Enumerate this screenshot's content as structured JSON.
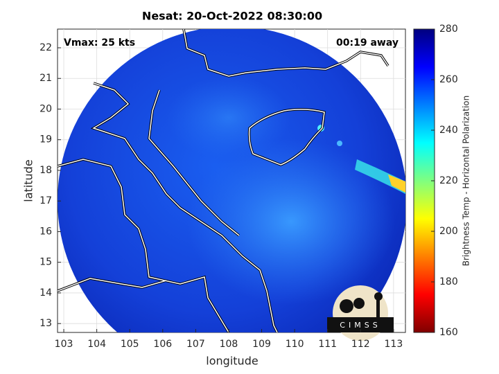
{
  "chart_data": {
    "type": "map",
    "title": "Nesat: 20-Oct-2022 08:30:00",
    "xlabel": "longitude",
    "ylabel": "latitude",
    "xlim": [
      102.81,
      113.36
    ],
    "ylim": [
      12.71,
      22.61
    ],
    "xticks": [
      103,
      104,
      105,
      106,
      107,
      108,
      109,
      110,
      111,
      112,
      113
    ],
    "yticks": [
      13,
      14,
      15,
      16,
      17,
      18,
      19,
      20,
      21,
      22
    ],
    "grid": true,
    "annotations": {
      "left": "Vmax: 25 kts",
      "right": "00:19 away"
    },
    "colorbar": {
      "label": "Brightness Temp - Horizontal Polarization",
      "lim": [
        160,
        280
      ],
      "ticks": [
        160,
        180,
        200,
        220,
        240,
        260,
        280
      ],
      "colormap": "jet"
    },
    "logo": "CIMSS"
  }
}
